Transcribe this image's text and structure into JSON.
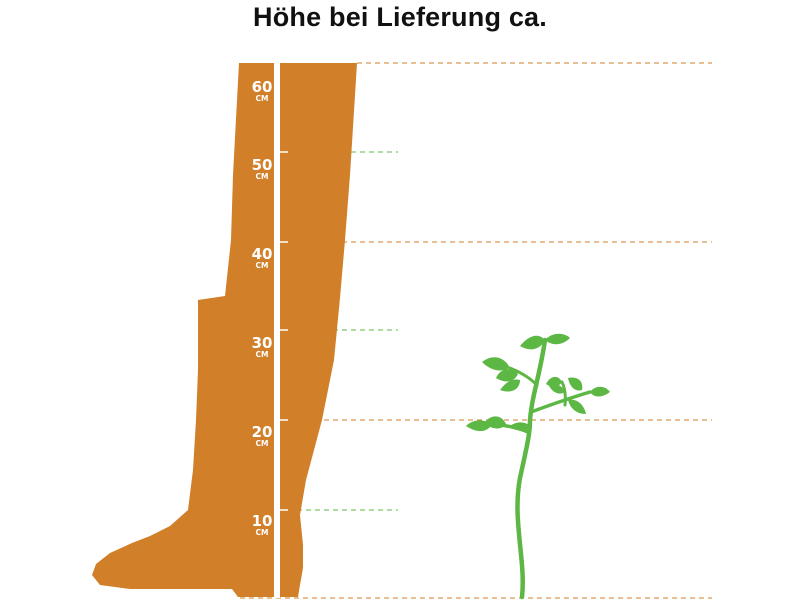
{
  "title": "Höhe bei Lieferung ca.",
  "colors": {
    "boot": "#D27F2A",
    "ruler": "#ffffff",
    "plant": "#5DB744",
    "orange_line": "#D27F2A",
    "green_line": "#5DB744"
  },
  "scale": {
    "unit": "CM",
    "marks": [
      {
        "value": "60",
        "line": "orange-long"
      },
      {
        "value": "50",
        "line": "green-short"
      },
      {
        "value": "40",
        "line": "orange-long"
      },
      {
        "value": "30",
        "line": "green-short"
      },
      {
        "value": "20",
        "line": "orange-long"
      },
      {
        "value": "10",
        "line": "green-short"
      }
    ]
  },
  "chart_data": {
    "type": "height-comparison",
    "unit": "cm",
    "scale_max": 60,
    "scale_ticks": [
      0,
      10,
      20,
      30,
      40,
      50,
      60
    ],
    "plant_height_cm": 30
  }
}
